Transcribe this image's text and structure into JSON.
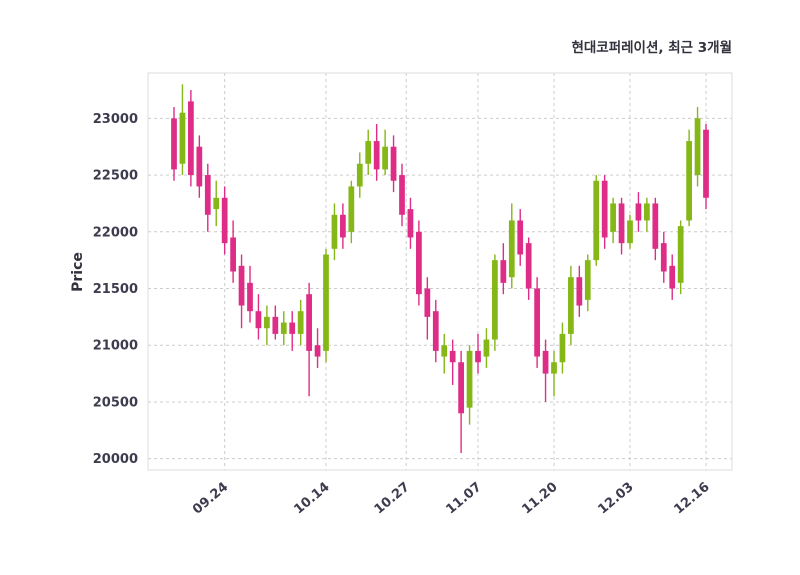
{
  "title": "현대코퍼레이션, 최근 3개월",
  "chart_data": {
    "type": "candlestick",
    "title": "현대코퍼레이션, 최근 3개월",
    "xlabel": "",
    "ylabel": "Price",
    "grid": true,
    "grid_color": "#cccccc",
    "up_color": "#85b716",
    "down_color": "#de2d87",
    "ylim": [
      19900,
      23400
    ],
    "y_ticks": [
      20000,
      20500,
      21000,
      21500,
      22000,
      22500,
      23000
    ],
    "x_ticks": [
      {
        "label": "09.24",
        "index": 6
      },
      {
        "label": "10.14",
        "index": 18
      },
      {
        "label": "10.27",
        "index": 27.5
      },
      {
        "label": "11.07",
        "index": 36
      },
      {
        "label": "11.20",
        "index": 45
      },
      {
        "label": "12.03",
        "index": 54
      },
      {
        "label": "12.16",
        "index": 63
      }
    ],
    "candle_columns": [
      "date",
      "open",
      "high",
      "low",
      "close"
    ],
    "candles": [
      [
        "09.16",
        23000,
        23100,
        22450,
        22550
      ],
      [
        "09.17",
        22600,
        23300,
        22500,
        23050
      ],
      [
        "09.18",
        23150,
        23250,
        22400,
        22500
      ],
      [
        "09.19",
        22750,
        22850,
        22300,
        22400
      ],
      [
        "09.20",
        22500,
        22600,
        22000,
        22150
      ],
      [
        "09.23",
        22200,
        22450,
        22050,
        22300
      ],
      [
        "09.24",
        22300,
        22400,
        21800,
        21900
      ],
      [
        "09.25",
        21950,
        22100,
        21550,
        21650
      ],
      [
        "09.26",
        21700,
        21800,
        21150,
        21350
      ],
      [
        "09.27",
        21550,
        21700,
        21200,
        21300
      ],
      [
        "09.30",
        21300,
        21450,
        21050,
        21150
      ],
      [
        "10.01",
        21150,
        21350,
        21000,
        21250
      ],
      [
        "10.02",
        21250,
        21350,
        21050,
        21100
      ],
      [
        "10.04",
        21100,
        21300,
        21000,
        21200
      ],
      [
        "10.07",
        21200,
        21300,
        20950,
        21100
      ],
      [
        "10.08",
        21100,
        21400,
        21000,
        21300
      ],
      [
        "10.10",
        21450,
        21550,
        20550,
        20950
      ],
      [
        "10.11",
        21000,
        21150,
        20800,
        20900
      ],
      [
        "10.14",
        20950,
        21850,
        20850,
        21800
      ],
      [
        "10.15",
        21850,
        22250,
        21750,
        22150
      ],
      [
        "10.16",
        22150,
        22250,
        21850,
        21950
      ],
      [
        "10.17",
        22000,
        22450,
        21900,
        22400
      ],
      [
        "10.18",
        22400,
        22700,
        22300,
        22600
      ],
      [
        "10.21",
        22600,
        22900,
        22500,
        22800
      ],
      [
        "10.22",
        22800,
        22950,
        22450,
        22550
      ],
      [
        "10.23",
        22550,
        22900,
        22500,
        22750
      ],
      [
        "10.24",
        22750,
        22850,
        22350,
        22450
      ],
      [
        "10.25",
        22500,
        22600,
        22050,
        22150
      ],
      [
        "10.28",
        22200,
        22300,
        21850,
        21950
      ],
      [
        "10.29",
        22000,
        22100,
        21350,
        21450
      ],
      [
        "10.30",
        21500,
        21600,
        21050,
        21250
      ],
      [
        "10.31",
        21300,
        21400,
        20850,
        20950
      ],
      [
        "11.01",
        20900,
        21100,
        20750,
        21000
      ],
      [
        "11.04",
        20950,
        21050,
        20650,
        20850
      ],
      [
        "11.05",
        20850,
        20950,
        20050,
        20400
      ],
      [
        "11.06",
        20450,
        21000,
        20300,
        20950
      ],
      [
        "11.07",
        20950,
        21100,
        20750,
        20850
      ],
      [
        "11.08",
        20900,
        21150,
        20800,
        21050
      ],
      [
        "11.11",
        21050,
        21800,
        20950,
        21750
      ],
      [
        "11.12",
        21750,
        21900,
        21450,
        21550
      ],
      [
        "11.13",
        21600,
        22250,
        21500,
        22100
      ],
      [
        "11.14",
        22100,
        22200,
        21700,
        21800
      ],
      [
        "11.15",
        21900,
        21950,
        21400,
        21500
      ],
      [
        "11.18",
        21500,
        21600,
        20800,
        20900
      ],
      [
        "11.19",
        20950,
        21050,
        20500,
        20750
      ],
      [
        "11.20",
        20750,
        20950,
        20550,
        20850
      ],
      [
        "11.21",
        20850,
        21200,
        20750,
        21100
      ],
      [
        "11.22",
        21100,
        21700,
        21000,
        21600
      ],
      [
        "11.25",
        21600,
        21700,
        21250,
        21350
      ],
      [
        "11.26",
        21400,
        21800,
        21300,
        21750
      ],
      [
        "11.27",
        21750,
        22500,
        21700,
        22450
      ],
      [
        "11.28",
        22450,
        22500,
        21850,
        21950
      ],
      [
        "11.29",
        22000,
        22300,
        21900,
        22250
      ],
      [
        "12.02",
        22250,
        22300,
        21800,
        21900
      ],
      [
        "12.03",
        21900,
        22150,
        21850,
        22100
      ],
      [
        "12.04",
        22250,
        22350,
        22000,
        22100
      ],
      [
        "12.05",
        22100,
        22300,
        22000,
        22250
      ],
      [
        "12.06",
        22250,
        22300,
        21750,
        21850
      ],
      [
        "12.09",
        21900,
        22000,
        21550,
        21650
      ],
      [
        "12.10",
        21700,
        21800,
        21400,
        21500
      ],
      [
        "12.11",
        21550,
        22100,
        21450,
        22050
      ],
      [
        "12.12",
        22100,
        22900,
        22050,
        22800
      ],
      [
        "12.13",
        22500,
        23100,
        22400,
        23000
      ],
      [
        "12.16",
        22900,
        22950,
        22200,
        22300
      ]
    ]
  }
}
